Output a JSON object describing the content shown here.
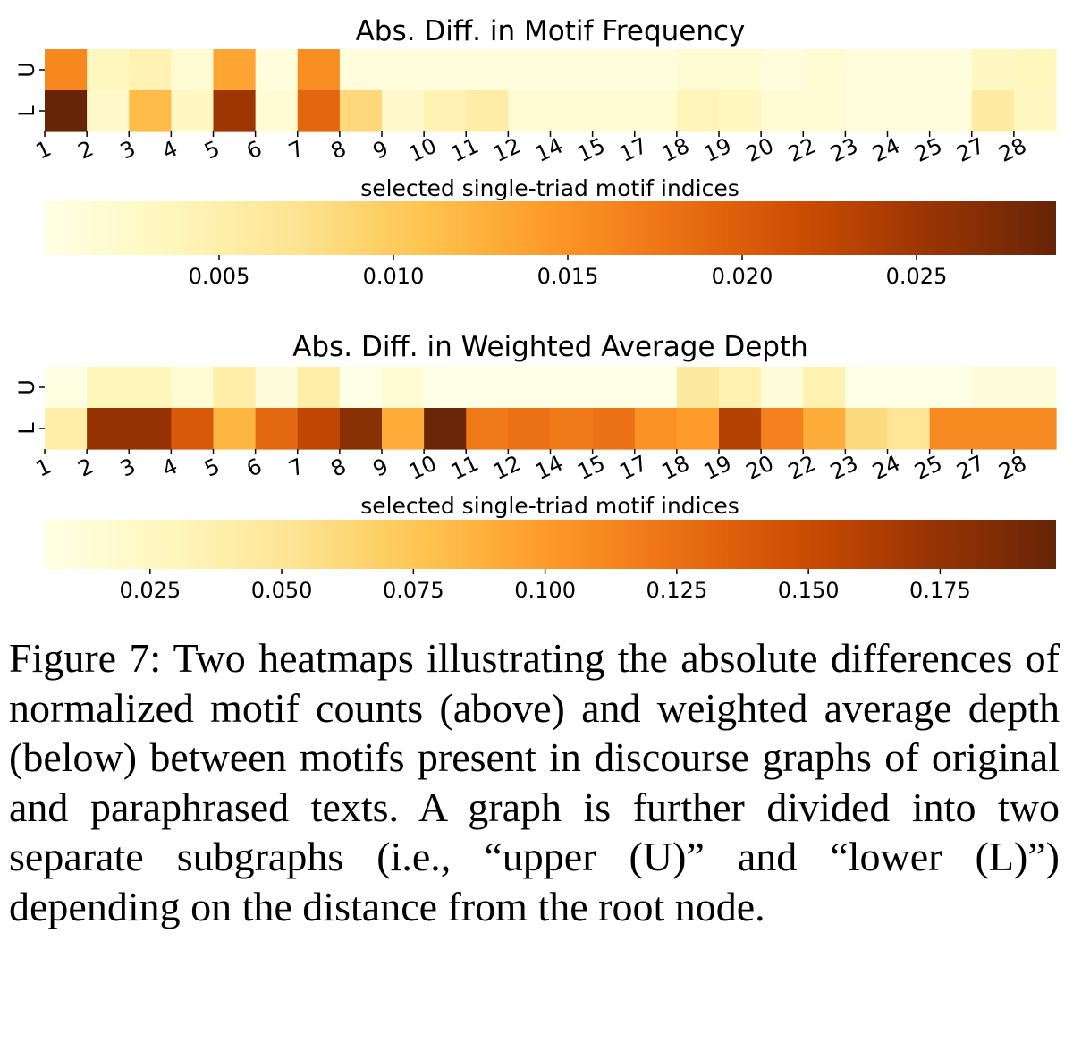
{
  "chart_data": [
    {
      "type": "heatmap",
      "title": "Abs. Diff. in Motif Frequency",
      "xlabel": "selected single-triad motif indices",
      "rows": [
        "U",
        "L"
      ],
      "columns": [
        "1",
        "2",
        "3",
        "4",
        "5",
        "6",
        "7",
        "8",
        "9",
        "10",
        "11",
        "12",
        "14",
        "15",
        "17",
        "18",
        "19",
        "20",
        "22",
        "23",
        "24",
        "25",
        "27",
        "28"
      ],
      "values": [
        [
          0.016,
          0.0035,
          0.0045,
          0.0015,
          0.0135,
          0.0008,
          0.0155,
          0.0008,
          0.0008,
          0.0008,
          0.0008,
          0.0008,
          0.0008,
          0.0008,
          0.0008,
          0.0015,
          0.0015,
          0.0008,
          0.0015,
          0.0008,
          0.0008,
          0.0008,
          0.003,
          0.0035
        ],
        [
          0.029,
          0.0025,
          0.0115,
          0.003,
          0.025,
          0.0015,
          0.019,
          0.0085,
          0.0025,
          0.0045,
          0.0055,
          0.0015,
          0.0015,
          0.0015,
          0.0015,
          0.004,
          0.0035,
          0.0015,
          0.0015,
          0.0008,
          0.0008,
          0.0008,
          0.006,
          0.003
        ]
      ],
      "colorbar": {
        "min": 0.0,
        "max": 0.029,
        "ticks": [
          0.005,
          0.01,
          0.015,
          0.02,
          0.025
        ],
        "tick_labels": [
          "0.005",
          "0.010",
          "0.015",
          "0.020",
          "0.025"
        ]
      }
    },
    {
      "type": "heatmap",
      "title": "Abs. Diff. in Weighted Average Depth",
      "xlabel": "selected single-triad motif indices",
      "rows": [
        "U",
        "L"
      ],
      "columns": [
        "1",
        "2",
        "3",
        "4",
        "5",
        "6",
        "7",
        "8",
        "9",
        "10",
        "11",
        "12",
        "14",
        "15",
        "17",
        "18",
        "19",
        "20",
        "22",
        "23",
        "24",
        "25",
        "27",
        "28"
      ],
      "values": [
        [
          0.008,
          0.03,
          0.03,
          0.015,
          0.04,
          0.012,
          0.04,
          0.005,
          0.015,
          0.005,
          0.005,
          0.005,
          0.005,
          0.005,
          0.005,
          0.045,
          0.035,
          0.012,
          0.035,
          0.005,
          0.005,
          0.005,
          0.012,
          0.012
        ],
        [
          0.04,
          0.175,
          0.175,
          0.14,
          0.085,
          0.13,
          0.155,
          0.18,
          0.09,
          0.195,
          0.12,
          0.125,
          0.12,
          0.125,
          0.105,
          0.1,
          0.16,
          0.115,
          0.09,
          0.06,
          0.05,
          0.11,
          0.11,
          0.11
        ]
      ],
      "colorbar": {
        "min": 0.005,
        "max": 0.197,
        "ticks": [
          0.025,
          0.05,
          0.075,
          0.1,
          0.125,
          0.15,
          0.175
        ],
        "tick_labels": [
          "0.025",
          "0.050",
          "0.075",
          "0.100",
          "0.125",
          "0.150",
          "0.175"
        ]
      }
    }
  ],
  "caption": "Figure 7: Two heatmaps illustrating the absolute differences of normalized motif counts (above) and weighted average depth (below) between motifs present in discourse graphs of original and paraphrased texts. A graph is further divided into two separate subgraphs (i.e., “upper (U)” and “lower (L)”) depending on the distance from the root node."
}
